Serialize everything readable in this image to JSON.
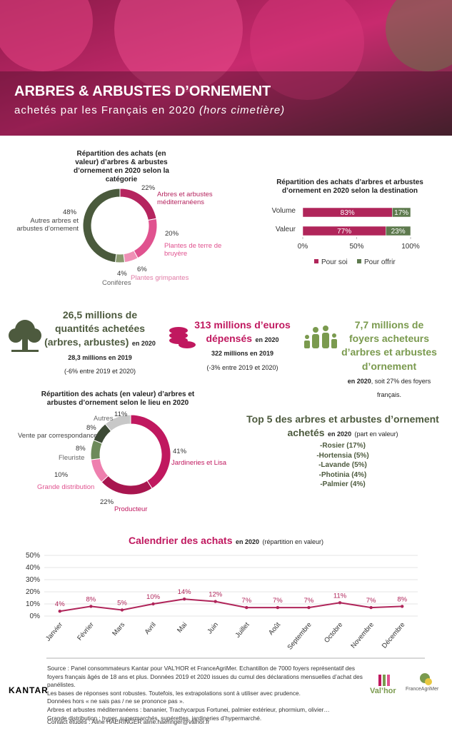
{
  "header": {
    "title": "ARBRES & ARBUSTES D’ORNEMENT",
    "subtitle": "achetés par les Français en 2020",
    "subtitle_note": "(hors cimetière)"
  },
  "chart_data": [
    {
      "type": "donut",
      "title": "Répartition des achats (en valeur) d’arbres & arbustes d’ornement en 2020 selon la catégorie",
      "categories": [
        "Arbres et arbustes méditerranéens",
        "Plantes de terre de bruyère",
        "Plantes grimpantes",
        "Conifères",
        "Autres arbres et arbustes d’ornement"
      ],
      "values": [
        22,
        20,
        6,
        4,
        48
      ],
      "value_labels": [
        "22%",
        "20%",
        "6%",
        "4%",
        "48%"
      ],
      "colors": [
        "#b5245e",
        "#e0528f",
        "#ef8fb5",
        "#8a9a70",
        "#4a5a3c"
      ]
    },
    {
      "type": "stacked-bar",
      "title": "Répartition des achats d’arbres et arbustes d’ornement en 2020 selon la destination",
      "categories": [
        "Volume",
        "Valeur"
      ],
      "series": [
        {
          "name": "Pour soi",
          "color": "#b0255a",
          "values": [
            83,
            77
          ],
          "value_labels": [
            "83%",
            "77%"
          ]
        },
        {
          "name": "Pour offrir",
          "color": "#5e7a4e",
          "values": [
            17,
            23
          ],
          "value_labels": [
            "17%",
            "23%"
          ]
        }
      ],
      "xlim": [
        0,
        100
      ],
      "xticks": [
        {
          "value": 0,
          "label": "0%"
        },
        {
          "value": 50,
          "label": "50%"
        },
        {
          "value": 100,
          "label": "100%"
        }
      ]
    },
    {
      "type": "donut",
      "title": "Répartition des achats (en valeur) d’arbres et arbustes d’ornement selon le lieu en 2020",
      "categories": [
        "Jardineries et Lisa",
        "Producteur",
        "Grande distribution",
        "Fleuriste",
        "Vente par correspondance",
        "Autres"
      ],
      "values": [
        41,
        22,
        10,
        8,
        8,
        11
      ],
      "value_labels": [
        "41%",
        "22%",
        "10%",
        "8%",
        "8%",
        "11%"
      ],
      "colors": [
        "#c0185f",
        "#a8164f",
        "#ee7fae",
        "#6d8a5b",
        "#3d4a35",
        "#c8c8c8"
      ]
    },
    {
      "type": "line",
      "title": "Calendrier des achats",
      "title_note": "en 2020",
      "subtitle": "(répartition en valeur)",
      "categories": [
        "Janvier",
        "Février",
        "Mars",
        "Avril",
        "Mai",
        "Juin",
        "Juillet",
        "Août",
        "Septembre",
        "Octobre",
        "Novembre",
        "Décembre"
      ],
      "values": [
        4,
        8,
        5,
        10,
        14,
        12,
        7,
        7,
        7,
        11,
        7,
        8
      ],
      "value_labels": [
        "4%",
        "8%",
        "5%",
        "10%",
        "14%",
        "12%",
        "7%",
        "7%",
        "7%",
        "11%",
        "7%",
        "8%"
      ],
      "color": "#b0255a",
      "ylim": [
        0,
        50
      ],
      "yticks": [
        {
          "value": 0,
          "label": "0%"
        },
        {
          "value": 10,
          "label": "10%"
        },
        {
          "value": 20,
          "label": "20%"
        },
        {
          "value": 30,
          "label": "30%"
        },
        {
          "value": 40,
          "label": "40%"
        },
        {
          "value": 50,
          "label": "50%"
        }
      ],
      "grid": true
    }
  ],
  "stats": [
    {
      "headline": "26,5 millions de quantités achetées (arbres, arbustes)",
      "year": "en 2020",
      "previous": "28,3 millions en 2019",
      "change": "(-6% entre 2019 et 2020)"
    },
    {
      "headline": "313 millions d’euros dépensés",
      "year": "en 2020",
      "previous": "322 millions en 2019",
      "change": "(-3% entre 2019 et 2020)"
    },
    {
      "headline": "7,7 millions de foyers acheteurs d’arbres et arbustes d’ornement",
      "year": "en 2020",
      "detail": ", soit 27% des foyers français."
    }
  ],
  "top5": {
    "title": "Top 5 des arbres et arbustes d’ornement achetés",
    "year": "en 2020",
    "note": "(part en valeur)",
    "items": [
      "-Rosier (17%)",
      "-Hortensia (5%)",
      "-Lavande (5%)",
      "-Photinia (4%)",
      "-Palmier (4%)"
    ]
  },
  "footer": {
    "kantar": "KANTAR",
    "lines": [
      "Source : Panel consommateurs Kantar pour VAL’HOR et FranceAgriMer. Echantillon de 7000 foyers représentatif des foyers français âgés de 18 ans et plus. Données 2019 et 2020 issues du cumul des déclarations mensuelles d’achat des panélistes.",
      "Les bases de réponses sont robustes. Toutefois, les extrapolations sont à utiliser avec prudence.",
      "Données hors « ne sais pas / ne se prononce pas ».",
      "Arbres et arbustes méditerranéens : bananier, Trachycarpus Fortunei, palmier extérieur, phormium, olivier…",
      "Grande distribution : hyper, supermarchés, supérettes, jardineries d’hypermarché."
    ],
    "contact": "Contact études : Aline HAERINGER aline.haeringer@valhor.fr",
    "logos": [
      "Val’hor",
      "FranceAgriMer"
    ]
  }
}
